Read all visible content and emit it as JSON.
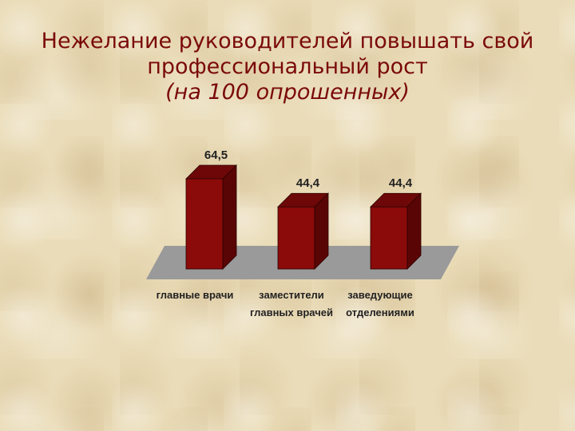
{
  "title": {
    "line1": "Нежелание руководителей  повышать свой",
    "line2": "профессиональный рост",
    "line3": "(на 100 опрошенных)"
  },
  "colors": {
    "title": "#7a0a0a",
    "bar_front": "#8b0a0a",
    "bar_side": "#5a0505",
    "bar_top": "#6e0808",
    "floor": "#9a9a9a"
  },
  "chart_data": {
    "type": "bar",
    "categories": [
      [
        "главные врачи"
      ],
      [
        "заместители",
        "главных врачей"
      ],
      [
        "заведующие",
        "отделениями"
      ]
    ],
    "values": [
      64.5,
      44.4,
      44.4
    ],
    "value_labels": [
      "64,5",
      "44,4",
      "44,4"
    ],
    "title": "Нежелание руководителей повышать свой профессиональный рост (на 100 опрошенных)",
    "xlabel": "",
    "ylabel": "",
    "ylim": [
      0,
      64.5
    ],
    "grid": false,
    "legend": "none",
    "style": "3d"
  }
}
